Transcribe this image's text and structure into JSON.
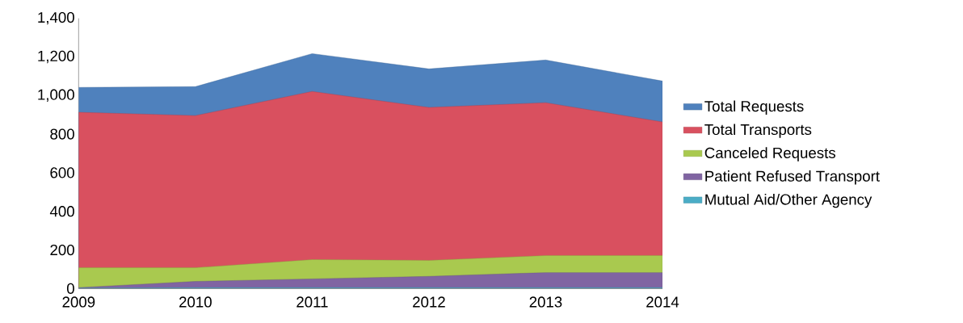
{
  "chart_data": {
    "type": "area",
    "categories": [
      "2009",
      "2010",
      "2011",
      "2012",
      "2013",
      "2014"
    ],
    "series": [
      {
        "name": "Total Requests",
        "color": "#4f81bd",
        "values": [
          1042,
          1046,
          1217,
          1138,
          1184,
          1075
        ]
      },
      {
        "name": "Total Transports",
        "color": "#d9505f",
        "values": [
          913,
          896,
          1021,
          938,
          963,
          863
        ]
      },
      {
        "name": "Canceled Requests",
        "color": "#a9c94f",
        "values": [
          108,
          108,
          150,
          146,
          171,
          171
        ]
      },
      {
        "name": "Patient Refused Transport",
        "color": "#8064a2",
        "values": [
          5,
          37,
          50,
          63,
          83,
          83
        ]
      },
      {
        "name": "Mutual Aid/Other Agency",
        "color": "#4bacc6",
        "values": [
          2,
          5,
          5,
          5,
          5,
          5
        ]
      }
    ],
    "ylim": [
      0,
      1400
    ],
    "yticks": [
      0,
      200,
      400,
      600,
      800,
      {
        "value": 1000,
        "label": "1,000"
      },
      {
        "value": 1200,
        "label": "1,200"
      },
      {
        "value": 1400,
        "label": "1,400"
      }
    ],
    "grid": false,
    "legend": "right"
  }
}
